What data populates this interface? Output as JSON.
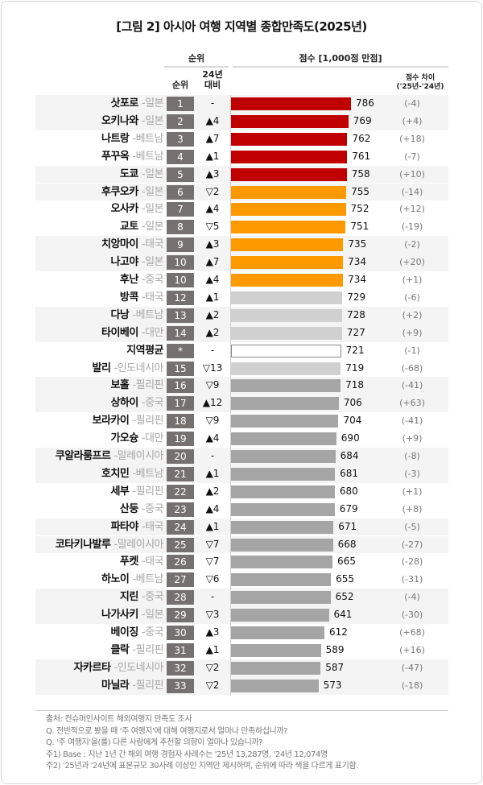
{
  "chart_data": {
    "type": "bar",
    "title": "[그림 2] 아시아 여행 지역별  종합만족도(2025년)",
    "headers": {
      "rank_group": "순위",
      "score_group": "점수 [1,000점 만점]",
      "rank": "순위",
      "change_line1": "24년",
      "change_line2": "대비",
      "diff_line1": "점수 차이",
      "diff_line2": "('25년-'24년)"
    },
    "xlim": [
      0,
      1000
    ],
    "colors": {
      "top": "#c00000",
      "second": "#ff9900",
      "third": "#d0d0d0",
      "rest": "#a5a5a5",
      "average": "#ffffff",
      "rank_box": "#767171"
    },
    "rows": [
      {
        "name": "삿포로",
        "country": "-일본",
        "rank": "1",
        "change": "-",
        "score": 786,
        "diff": "(-4)",
        "tier": "top"
      },
      {
        "name": "오키나와",
        "country": "-일본",
        "rank": "2",
        "change": "▲4",
        "score": 769,
        "diff": "(+4)",
        "tier": "top"
      },
      {
        "name": "나트랑",
        "country": "-베트남",
        "rank": "3",
        "change": "▲7",
        "score": 762,
        "diff": "(+18)",
        "tier": "top"
      },
      {
        "name": "푸꾸옥",
        "country": "-베트남",
        "rank": "4",
        "change": "▲1",
        "score": 761,
        "diff": "(-7)",
        "tier": "top"
      },
      {
        "name": "도쿄",
        "country": "-일본",
        "rank": "5",
        "change": "▲3",
        "score": 758,
        "diff": "(+10)",
        "tier": "top"
      },
      {
        "name": "후쿠오카",
        "country": "-일본",
        "rank": "6",
        "change": "▽2",
        "score": 755,
        "diff": "(-14)",
        "tier": "second"
      },
      {
        "name": "오사카",
        "country": "-일본",
        "rank": "7",
        "change": "▲4",
        "score": 752,
        "diff": "(+12)",
        "tier": "second"
      },
      {
        "name": "교토",
        "country": "-일본",
        "rank": "8",
        "change": "▽5",
        "score": 751,
        "diff": "(-19)",
        "tier": "second"
      },
      {
        "name": "치앙마이",
        "country": "-태국",
        "rank": "9",
        "change": "▲3",
        "score": 735,
        "diff": "(-2)",
        "tier": "second"
      },
      {
        "name": "나고야",
        "country": "-일본",
        "rank": "10",
        "change": "▲7",
        "score": 734,
        "diff": "(+20)",
        "tier": "second"
      },
      {
        "name": "후난",
        "country": "-중국",
        "rank": "10",
        "change": "▲4",
        "score": 734,
        "diff": "(+1)",
        "tier": "second"
      },
      {
        "name": "방콕",
        "country": "-태국",
        "rank": "12",
        "change": "▲1",
        "score": 729,
        "diff": "(-6)",
        "tier": "third"
      },
      {
        "name": "다낭",
        "country": "-베트남",
        "rank": "13",
        "change": "▲2",
        "score": 728,
        "diff": "(+2)",
        "tier": "third"
      },
      {
        "name": "타이베이",
        "country": "-대만",
        "rank": "14",
        "change": "▲2",
        "score": 727,
        "diff": "(+9)",
        "tier": "third"
      },
      {
        "name": "지역평균",
        "country": "",
        "rank": "*",
        "change": "-",
        "score": 721,
        "diff": "(-1)",
        "tier": "average"
      },
      {
        "name": "발리",
        "country": "-인도네시아",
        "rank": "15",
        "change": "▽13",
        "score": 719,
        "diff": "(-68)",
        "tier": "third"
      },
      {
        "name": "보홀",
        "country": "-필리핀",
        "rank": "16",
        "change": "▽9",
        "score": 718,
        "diff": "(-41)",
        "tier": "rest"
      },
      {
        "name": "상하이",
        "country": "-중국",
        "rank": "17",
        "change": "▲12",
        "score": 706,
        "diff": "(+63)",
        "tier": "rest"
      },
      {
        "name": "보라카이",
        "country": "-필리핀",
        "rank": "18",
        "change": "▽9",
        "score": 704,
        "diff": "(-41)",
        "tier": "rest"
      },
      {
        "name": "가오슝",
        "country": "-대만",
        "rank": "19",
        "change": "▲4",
        "score": 690,
        "diff": "(+9)",
        "tier": "rest"
      },
      {
        "name": "쿠알라룸프르",
        "country": "-말레이시아",
        "rank": "20",
        "change": "-",
        "score": 684,
        "diff": "(-8)",
        "tier": "rest"
      },
      {
        "name": "호치민",
        "country": "-베트남",
        "rank": "21",
        "change": "▲1",
        "score": 681,
        "diff": "(-3)",
        "tier": "rest"
      },
      {
        "name": "세부",
        "country": "-필리핀",
        "rank": "22",
        "change": "▲2",
        "score": 680,
        "diff": "(+1)",
        "tier": "rest"
      },
      {
        "name": "산둥",
        "country": "-중국",
        "rank": "23",
        "change": "▲4",
        "score": 679,
        "diff": "(+8)",
        "tier": "rest"
      },
      {
        "name": "파타야",
        "country": "-태국",
        "rank": "24",
        "change": "▲1",
        "score": 671,
        "diff": "(-5)",
        "tier": "rest"
      },
      {
        "name": "코타키나발루",
        "country": "-말레이시아",
        "rank": "25",
        "change": "▽7",
        "score": 668,
        "diff": "(-27)",
        "tier": "rest"
      },
      {
        "name": "푸켓",
        "country": "-태국",
        "rank": "26",
        "change": "▽7",
        "score": 665,
        "diff": "(-28)",
        "tier": "rest"
      },
      {
        "name": "하노이",
        "country": "-베트남",
        "rank": "27",
        "change": "▽6",
        "score": 655,
        "diff": "(-31)",
        "tier": "rest"
      },
      {
        "name": "지린",
        "country": "-중국",
        "rank": "28",
        "change": "-",
        "score": 652,
        "diff": "(-4)",
        "tier": "rest"
      },
      {
        "name": "나가사키",
        "country": "-일본",
        "rank": "29",
        "change": "▽3",
        "score": 641,
        "diff": "(-30)",
        "tier": "rest"
      },
      {
        "name": "베이징",
        "country": "-중국",
        "rank": "30",
        "change": "▲3",
        "score": 612,
        "diff": "(+68)",
        "tier": "rest"
      },
      {
        "name": "클락",
        "country": "-필리핀",
        "rank": "31",
        "change": "▲1",
        "score": 589,
        "diff": "(+16)",
        "tier": "rest"
      },
      {
        "name": "자카르타",
        "country": "-인도네시아",
        "rank": "32",
        "change": "▽2",
        "score": 587,
        "diff": "(-47)",
        "tier": "rest"
      },
      {
        "name": "마닐라",
        "country": "-필리핀",
        "rank": "33",
        "change": "▽2",
        "score": 573,
        "diff": "(-18)",
        "tier": "rest"
      }
    ]
  },
  "footer": [
    "출처: 컨슈머인사이트 해외여행지 만족도 조사",
    "Q. 전반적으로 봤을 때 '주 여행지'에 대해 여행지로서 얼마나 만족하십니까?",
    "Q. '주 여행지'을(를) 다른 사람에게 추천할 의향이 얼마나 있습니까?",
    "주1) Base : 지난 1년 간 해외 여행 경험자 사례수는  '25년 13,287명, '24년 12,074명",
    "주2) '25년과 '24년에  표본규모 30사례 이상인 지역만 제시하며, 순위에 따라 색을 다르게 표기함."
  ]
}
